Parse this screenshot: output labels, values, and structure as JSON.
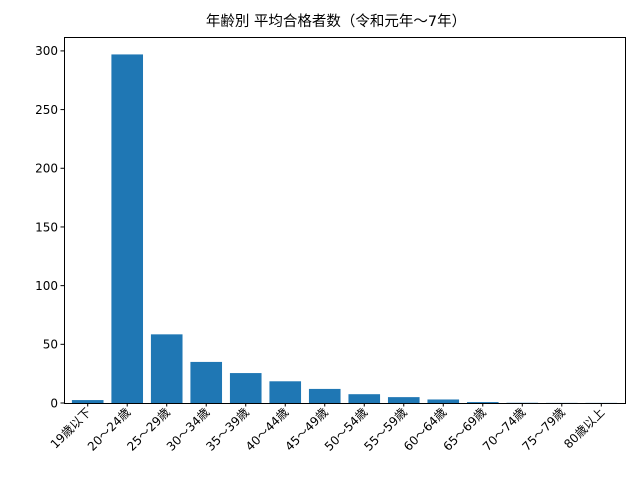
{
  "chart_data": {
    "type": "bar",
    "title": "年齢別 平均合格者数（令和元年〜7年）",
    "xlabel": "",
    "ylabel": "",
    "categories": [
      "19歳以下",
      "20〜24歳",
      "25〜29歳",
      "30〜34歳",
      "35〜39歳",
      "40〜44歳",
      "45〜49歳",
      "50〜54歳",
      "55〜59歳",
      "60〜64歳",
      "65〜69歳",
      "70〜74歳",
      "75〜79歳",
      "80歳以上"
    ],
    "values": [
      2.5,
      297,
      58.5,
      35,
      25.5,
      18.5,
      12,
      7.5,
      5,
      3,
      0.8,
      0.2,
      0.1,
      0.1
    ],
    "ylim": [
      0,
      311.85
    ],
    "yticks": [
      0,
      50,
      100,
      150,
      200,
      250,
      300
    ],
    "bar_color": "#1f77b4",
    "grid": false,
    "legend": "none"
  }
}
